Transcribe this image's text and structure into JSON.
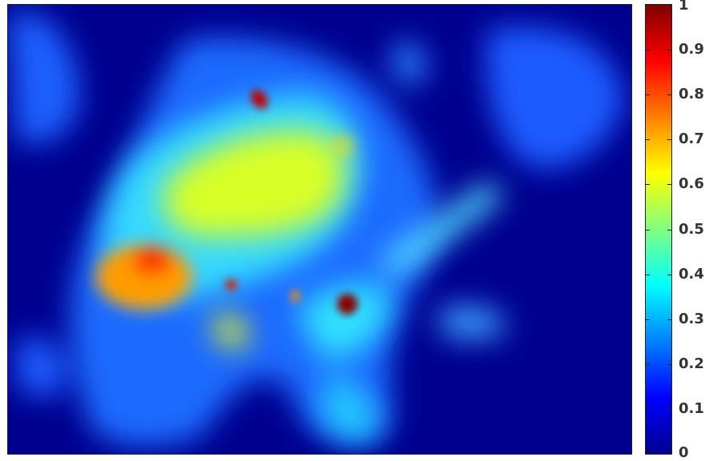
{
  "chart_data": {
    "type": "heatmap",
    "title": "",
    "xlabel": "",
    "ylabel": "",
    "colormap": "jet",
    "colorbar": {
      "range": [
        0,
        1
      ],
      "tick_labels": [
        "0",
        "0.1",
        "0.2",
        "0.3",
        "0.4",
        "0.5",
        "0.6",
        "0.7",
        "0.8",
        "0.9",
        "1"
      ],
      "tick_values": [
        0,
        0.1,
        0.2,
        0.3,
        0.4,
        0.5,
        0.6,
        0.7,
        0.8,
        0.9,
        1
      ]
    },
    "background_value": 0.05,
    "hotspots": [
      {
        "label": "left-body-region",
        "peak_value": 0.8
      },
      {
        "label": "upper-small-spot",
        "peak_value": 0.95
      },
      {
        "label": "center-right-spot",
        "peak_value": 1.0
      },
      {
        "label": "body-upper-area",
        "peak_value": 0.62
      },
      {
        "label": "small-spot-center",
        "peak_value": 0.78
      },
      {
        "label": "right-stripe",
        "peak_value": 0.4
      },
      {
        "label": "top-left-blob",
        "peak_value": 0.3
      },
      {
        "label": "top-right-blob",
        "peak_value": 0.3
      }
    ]
  },
  "colors": {
    "background": "#00008f",
    "frame": "#222222",
    "tick_text": "#333333"
  }
}
